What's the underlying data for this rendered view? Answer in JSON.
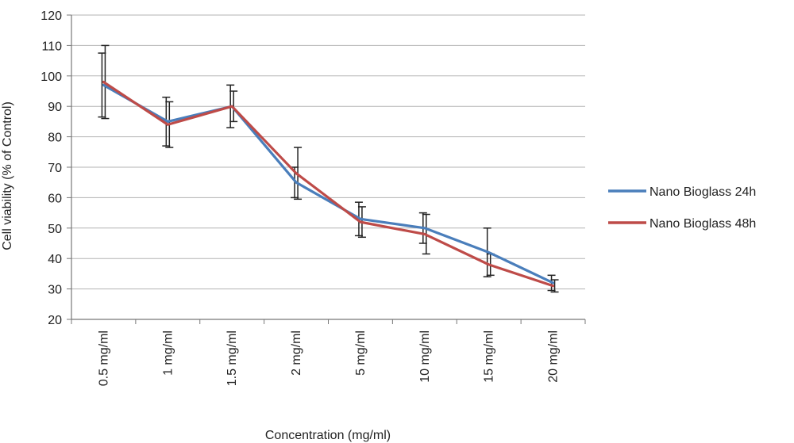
{
  "chart_data": {
    "type": "line",
    "title": "",
    "xlabel": "Concentration (mg/ml)",
    "ylabel": "Cell viability (% of Control)",
    "ylim": [
      20,
      120
    ],
    "yticks": [
      20,
      30,
      40,
      50,
      60,
      70,
      80,
      90,
      100,
      110,
      120
    ],
    "categories": [
      "0.5 mg/ml",
      "1 mg/ml",
      "1.5 mg/ml",
      "2 mg/ml",
      "5 mg/ml",
      "10 mg/ml",
      "15 mg/ml",
      "20 mg/ml"
    ],
    "grid": true,
    "legend_position": "right",
    "series": [
      {
        "name": "Nano Bioglass 24h",
        "color": "#4a7ebb",
        "values": [
          97,
          85,
          90,
          65,
          53,
          50,
          42,
          32
        ],
        "error": [
          10.5,
          8,
          7,
          5,
          5.5,
          5,
          8,
          2.5
        ]
      },
      {
        "name": "Nano Bioglass 48h",
        "color": "#be4b48",
        "values": [
          98,
          84,
          90,
          68,
          52,
          48,
          38,
          31
        ],
        "error": [
          12,
          7.5,
          5,
          8.5,
          5,
          6.5,
          3.5,
          2
        ]
      }
    ]
  }
}
